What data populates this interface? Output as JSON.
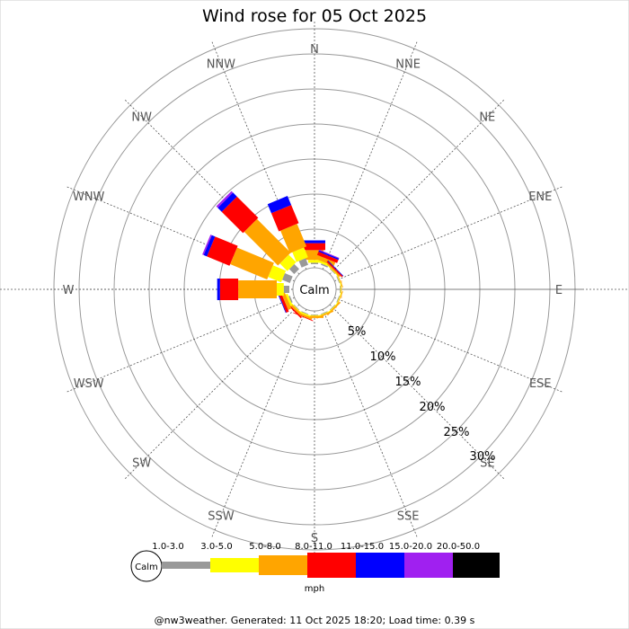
{
  "chart_data": {
    "type": "windrose",
    "title": "Wind rose for 05 Oct 2025",
    "directions": [
      "N",
      "NNE",
      "NE",
      "ENE",
      "E",
      "ESE",
      "SE",
      "SSE",
      "S",
      "SSW",
      "SW",
      "WSW",
      "W",
      "WNW",
      "NW",
      "NNW"
    ],
    "ring_labels": [
      "5%",
      "10%",
      "15%",
      "20%",
      "25%",
      "30%"
    ],
    "rmax_percent": 30,
    "calm_label": "Calm",
    "unit": "mph",
    "speed_bins": [
      {
        "label": "1.0-3.0",
        "color": "#999999"
      },
      {
        "label": "3.0-5.0",
        "color": "#ffff00"
      },
      {
        "label": "5.0-8.0",
        "color": "#ffa500"
      },
      {
        "label": "8.0-11.0",
        "color": "#ff0000"
      },
      {
        "label": "11.0-15.0",
        "color": "#0000ff"
      },
      {
        "label": "15.0-20.0",
        "color": "#a020f0"
      },
      {
        "label": "20.0-50.0",
        "color": "#000000"
      }
    ],
    "series": [
      {
        "direction": "N",
        "values": [
          0.2,
          0.4,
          1.4,
          1.0,
          0.4,
          0.0,
          0.0
        ]
      },
      {
        "direction": "NNE",
        "values": [
          0.2,
          0.3,
          0.6,
          0.5,
          0.2,
          0.1,
          0.0
        ]
      },
      {
        "direction": "NE",
        "values": [
          0.1,
          0.1,
          0.2,
          0.2,
          0.1,
          0.0,
          0.0
        ]
      },
      {
        "direction": "ENE",
        "values": [
          0.1,
          0.1,
          0.1,
          0.0,
          0.0,
          0.0,
          0.0
        ]
      },
      {
        "direction": "E",
        "values": [
          0.1,
          0.1,
          0.1,
          0.0,
          0.0,
          0.0,
          0.0
        ]
      },
      {
        "direction": "ESE",
        "values": [
          0.1,
          0.1,
          0.1,
          0.0,
          0.0,
          0.0,
          0.0
        ]
      },
      {
        "direction": "SE",
        "values": [
          0.1,
          0.1,
          0.2,
          0.0,
          0.0,
          0.0,
          0.0
        ]
      },
      {
        "direction": "SSE",
        "values": [
          0.1,
          0.1,
          0.2,
          0.0,
          0.0,
          0.0,
          0.0
        ]
      },
      {
        "direction": "S",
        "values": [
          0.1,
          0.1,
          0.3,
          0.0,
          0.0,
          0.0,
          0.0
        ]
      },
      {
        "direction": "SSW",
        "values": [
          0.1,
          0.2,
          0.3,
          0.1,
          0.0,
          0.0,
          0.0
        ]
      },
      {
        "direction": "SW",
        "values": [
          0.1,
          0.1,
          0.3,
          0.2,
          0.0,
          0.0,
          0.0
        ]
      },
      {
        "direction": "WSW",
        "values": [
          0.2,
          0.3,
          0.5,
          0.4,
          0.1,
          0.0,
          0.0
        ]
      },
      {
        "direction": "W",
        "values": [
          0.8,
          1.0,
          5.5,
          2.6,
          0.4,
          0.0,
          0.0
        ]
      },
      {
        "direction": "WNW",
        "values": [
          1.2,
          2.0,
          5.7,
          3.5,
          0.5,
          0.2,
          0.0
        ]
      },
      {
        "direction": "NW",
        "values": [
          1.0,
          1.5,
          6.8,
          4.3,
          0.8,
          0.3,
          0.0
        ]
      },
      {
        "direction": "NNW",
        "values": [
          1.0,
          1.5,
          3.5,
          2.8,
          1.4,
          0.0,
          0.0
        ]
      }
    ]
  },
  "footer": "@nw3weather. Generated: 11 Oct 2025 18:20; Load time: 0.39 s"
}
